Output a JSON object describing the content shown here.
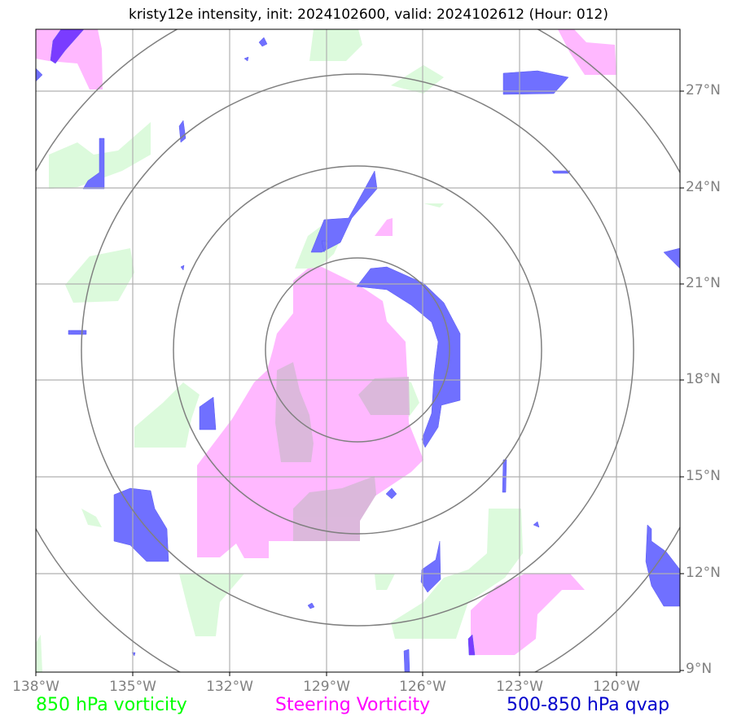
{
  "title": "kristy12e intensity, init: 2024102600, valid: 2024102612 (Hour: 012)",
  "axes": {
    "lat_labels": [
      "27°N",
      "24°N",
      "21°N",
      "18°N",
      "15°N",
      "12°N",
      "9°N"
    ],
    "lon_labels": [
      "138°W",
      "135°W",
      "132°W",
      "129°W",
      "126°W",
      "123°W",
      "120°W"
    ]
  },
  "legend": {
    "vort850": "850 hPa vorticity",
    "steering": "Steering Vorticity",
    "qvap": "500-850 hPa qvap"
  },
  "colors": {
    "vort850": "#00ff00",
    "steering": "#ff00ff",
    "qvap": "#0000cc",
    "vort850_fill": "#ddfbdd",
    "steering_fill": "#ffbbff",
    "qvap_fill": "#7a7aff"
  }
}
